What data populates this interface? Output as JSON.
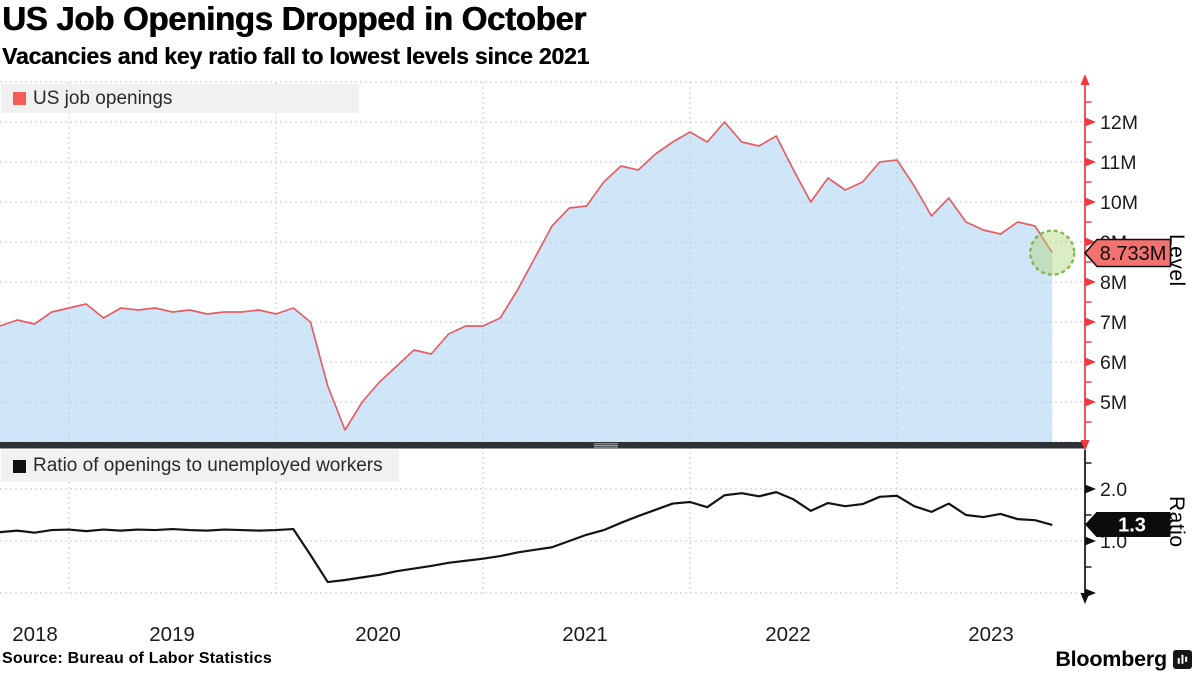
{
  "header": {
    "title": "US Job Openings Dropped in October",
    "subtitle": "Vacancies and key ratio fall to lowest levels since 2021"
  },
  "footer": {
    "source": "Source: Bureau of Labor Statistics",
    "brand": "Bloomberg"
  },
  "colors": {
    "accent_red": "#f0393f",
    "series_red": "#e25f67",
    "area_blue": "#cfe5f8",
    "badge_salmon": "#f3716e",
    "legend_swatch_red": "#f45c59",
    "series_black": "#141414",
    "green_highlight": "#84b74e",
    "separator_dark": "#2e3237",
    "grid_gray": "#c9c9c9"
  },
  "x_axis": {
    "year_labels": [
      "2018",
      "2019",
      "2020",
      "2021",
      "2022",
      "2023"
    ]
  },
  "chart_data": [
    {
      "type": "area",
      "title": "US job openings",
      "legend": "US job openings",
      "axis_label": "Level",
      "last_value_label": "8.733M",
      "last_value": 8.733,
      "unit": "millions",
      "ylim": [
        4,
        13
      ],
      "y_ticks": [
        "5M",
        "6M",
        "7M",
        "8M",
        "9M",
        "10M",
        "11M",
        "12M"
      ],
      "x": [
        "2018-09",
        "2018-10",
        "2018-11",
        "2018-12",
        "2019-01",
        "2019-02",
        "2019-03",
        "2019-04",
        "2019-05",
        "2019-06",
        "2019-07",
        "2019-08",
        "2019-09",
        "2019-10",
        "2019-11",
        "2019-12",
        "2020-01",
        "2020-02",
        "2020-03",
        "2020-04",
        "2020-05",
        "2020-06",
        "2020-07",
        "2020-08",
        "2020-09",
        "2020-10",
        "2020-11",
        "2020-12",
        "2021-01",
        "2021-02",
        "2021-03",
        "2021-04",
        "2021-05",
        "2021-06",
        "2021-07",
        "2021-08",
        "2021-09",
        "2021-10",
        "2021-11",
        "2021-12",
        "2022-01",
        "2022-02",
        "2022-03",
        "2022-04",
        "2022-05",
        "2022-06",
        "2022-07",
        "2022-08",
        "2022-09",
        "2022-10",
        "2022-11",
        "2022-12",
        "2023-01",
        "2023-02",
        "2023-03",
        "2023-04",
        "2023-05",
        "2023-06",
        "2023-07",
        "2023-08",
        "2023-09",
        "2023-10"
      ],
      "values": [
        6.9,
        7.05,
        6.95,
        7.25,
        7.35,
        7.45,
        7.1,
        7.35,
        7.3,
        7.35,
        7.25,
        7.3,
        7.2,
        7.25,
        7.25,
        7.3,
        7.2,
        7.35,
        7.0,
        5.4,
        4.3,
        5.0,
        5.5,
        5.9,
        6.3,
        6.2,
        6.7,
        6.9,
        6.9,
        7.1,
        7.8,
        8.6,
        9.4,
        9.85,
        9.9,
        10.5,
        10.9,
        10.8,
        11.2,
        11.5,
        11.75,
        11.5,
        12.0,
        11.5,
        11.4,
        11.65,
        10.8,
        10.0,
        10.6,
        10.3,
        10.5,
        11.0,
        11.05,
        10.4,
        9.65,
        10.1,
        9.5,
        9.3,
        9.2,
        9.5,
        9.4,
        8.733
      ]
    },
    {
      "type": "line",
      "title": "Ratio of openings to unemployed workers",
      "legend": "Ratio of openings to unemployed workers",
      "axis_label": "Ratio",
      "last_value_label": "1.3",
      "last_value": 1.31,
      "ylim": [
        0,
        2.75
      ],
      "y_ticks": [
        "1.0",
        "2.0"
      ],
      "x": [
        "2018-09",
        "2018-10",
        "2018-11",
        "2018-12",
        "2019-01",
        "2019-02",
        "2019-03",
        "2019-04",
        "2019-05",
        "2019-06",
        "2019-07",
        "2019-08",
        "2019-09",
        "2019-10",
        "2019-11",
        "2019-12",
        "2020-01",
        "2020-02",
        "2020-03",
        "2020-04",
        "2020-05",
        "2020-06",
        "2020-07",
        "2020-08",
        "2020-09",
        "2020-10",
        "2020-11",
        "2020-12",
        "2021-01",
        "2021-02",
        "2021-03",
        "2021-04",
        "2021-05",
        "2021-06",
        "2021-07",
        "2021-08",
        "2021-09",
        "2021-10",
        "2021-11",
        "2021-12",
        "2022-01",
        "2022-02",
        "2022-03",
        "2022-04",
        "2022-05",
        "2022-06",
        "2022-07",
        "2022-08",
        "2022-09",
        "2022-10",
        "2022-11",
        "2022-12",
        "2023-01",
        "2023-02",
        "2023-03",
        "2023-04",
        "2023-05",
        "2023-06",
        "2023-07",
        "2023-08",
        "2023-09",
        "2023-10"
      ],
      "values": [
        1.17,
        1.2,
        1.16,
        1.21,
        1.22,
        1.19,
        1.22,
        1.2,
        1.22,
        1.21,
        1.23,
        1.21,
        1.2,
        1.22,
        1.21,
        1.2,
        1.21,
        1.23,
        0.73,
        0.21,
        0.25,
        0.3,
        0.35,
        0.42,
        0.47,
        0.52,
        0.58,
        0.62,
        0.66,
        0.71,
        0.78,
        0.83,
        0.88,
        1.0,
        1.12,
        1.21,
        1.35,
        1.48,
        1.6,
        1.72,
        1.75,
        1.65,
        1.88,
        1.92,
        1.86,
        1.94,
        1.8,
        1.58,
        1.73,
        1.67,
        1.71,
        1.85,
        1.87,
        1.67,
        1.56,
        1.72,
        1.5,
        1.46,
        1.52,
        1.42,
        1.4,
        1.31
      ]
    }
  ]
}
